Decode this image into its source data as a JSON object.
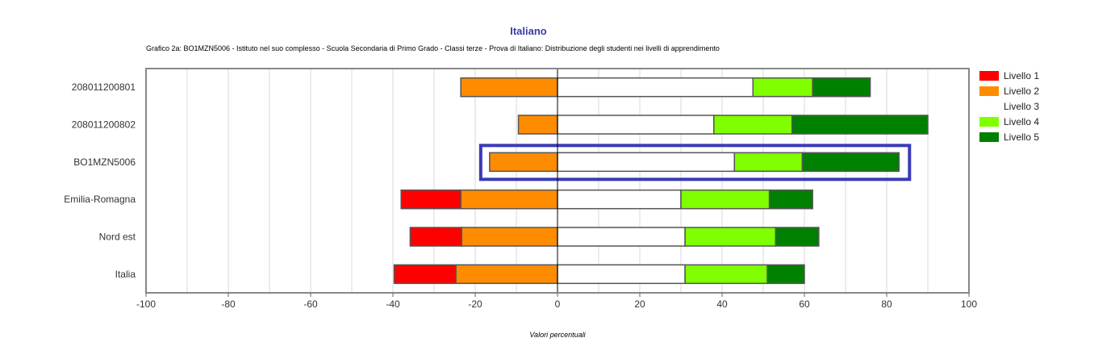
{
  "chart_data": {
    "type": "bar",
    "orientation": "horizontal",
    "stacked": true,
    "title": "Italiano",
    "subtitle": "Grafico 2a: BO1MZN5006 - Istituto nel suo complesso - Scuola Secondaria di Primo Grado - Classi terze - Prova di Italiano: Distribuzione degli studenti nei livelli di apprendimento",
    "xlabel": "Valori percentuali",
    "xlim": [
      -100,
      100
    ],
    "xticks": [
      -100,
      -80,
      -60,
      -40,
      -20,
      0,
      20,
      40,
      60,
      80,
      100
    ],
    "grid": true,
    "legend_position": "right",
    "highlighted_category": "BO1MZN5006",
    "categories": [
      "208011200801",
      "208011200802",
      "BO1MZN5006",
      "Emilia-Romagna",
      "Nord est",
      "Italia"
    ],
    "series": [
      {
        "name": "Livello 1",
        "color": "#ff0000",
        "values": [
          0,
          0,
          0,
          14.5,
          12.5,
          15
        ]
      },
      {
        "name": "Livello 2",
        "color": "#ff8c00",
        "values": [
          23.5,
          9.5,
          16.5,
          23.5,
          23.3,
          24.7
        ]
      },
      {
        "name": "Livello 3",
        "color": "#ffffff",
        "values": [
          47.5,
          38,
          43,
          30,
          31,
          31
        ]
      },
      {
        "name": "Livello 4",
        "color": "#80ff00",
        "values": [
          14.5,
          19,
          16.5,
          21.5,
          22,
          20
        ]
      },
      {
        "name": "Livello 5",
        "color": "#008000",
        "values": [
          14,
          33,
          23.5,
          10.5,
          10.5,
          9
        ]
      }
    ]
  }
}
